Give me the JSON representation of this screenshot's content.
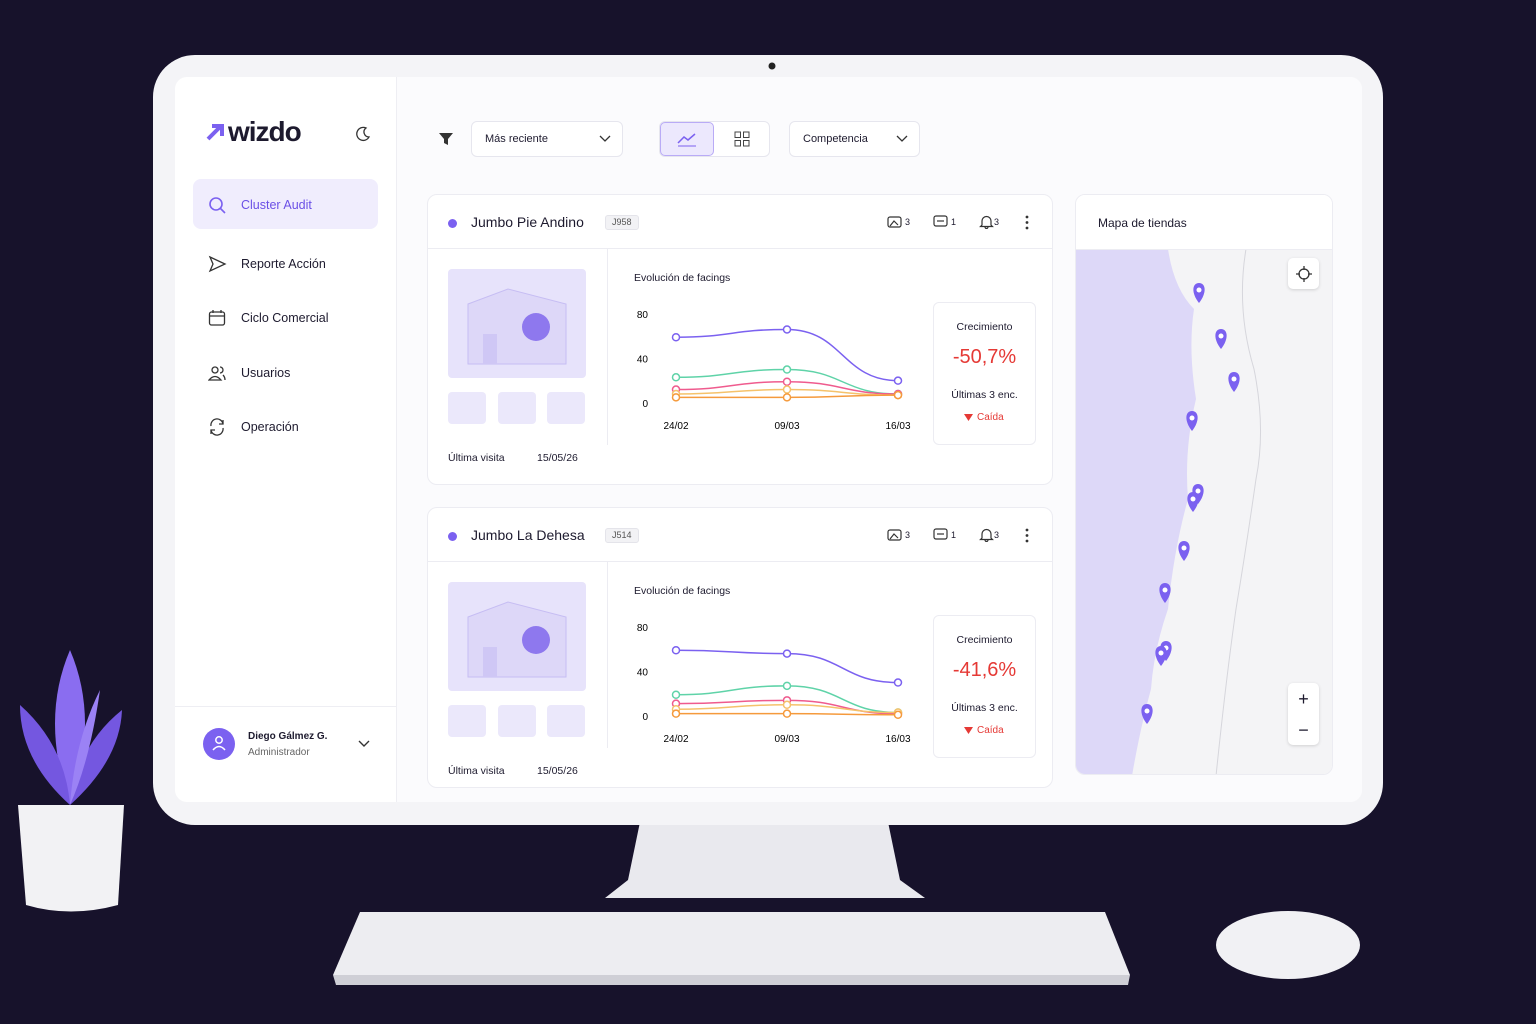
{
  "sidebar": {
    "logo": "wizdo",
    "nav": [
      "Cluster Audit",
      "Reporte Acción",
      "Ciclo Comercial",
      "Usuarios",
      "Operación"
    ],
    "user": {
      "name": "Diego Gálmez G.",
      "role": "Administrador"
    }
  },
  "toolbar": {
    "sort": "Más reciente",
    "filter": "Competencia"
  },
  "cards": [
    {
      "name": "Jumbo Pie Andino",
      "code": "J958",
      "photos": 3,
      "comments": 1,
      "alerts": 3,
      "growth_label": "Crecimiento",
      "growth": "-50,7%",
      "window": "Últimas 3 enc.",
      "trend": "Caída",
      "visit_label": "Última visita",
      "visit_date": "15/05/26"
    },
    {
      "name": "Jumbo La Dehesa",
      "code": "J514",
      "photos": 3,
      "comments": 1,
      "alerts": 3,
      "growth_label": "Crecimiento",
      "growth": "-41,6%",
      "window": "Últimas 3 enc.",
      "trend": "Caída",
      "visit_label": "Última visita",
      "visit_date": "15/05/26"
    }
  ],
  "chart_data": [
    {
      "type": "line",
      "title": "Evolución de facings",
      "categories": [
        "24/02",
        "09/03",
        "16/03"
      ],
      "ylim": [
        0,
        80
      ],
      "yticks": [
        0,
        40,
        80
      ],
      "series": [
        {
          "color": "#7b61f0",
          "values": [
            60,
            67,
            21
          ]
        },
        {
          "color": "#5fd3a8",
          "values": [
            24,
            31,
            9
          ]
        },
        {
          "color": "#ef5b8e",
          "values": [
            13,
            20,
            9
          ]
        },
        {
          "color": "#f5c26b",
          "values": [
            9,
            13,
            8
          ]
        },
        {
          "color": "#f59a3c",
          "values": [
            6,
            6,
            8
          ]
        }
      ]
    },
    {
      "type": "line",
      "title": "Evolución de facings",
      "categories": [
        "24/02",
        "09/03",
        "16/03"
      ],
      "ylim": [
        0,
        80
      ],
      "yticks": [
        0,
        40,
        80
      ],
      "series": [
        {
          "color": "#7b61f0",
          "values": [
            60,
            57,
            31
          ]
        },
        {
          "color": "#5fd3a8",
          "values": [
            20,
            28,
            4
          ]
        },
        {
          "color": "#ef5b8e",
          "values": [
            12,
            15,
            3
          ]
        },
        {
          "color": "#f5c26b",
          "values": [
            7,
            11,
            4
          ]
        },
        {
          "color": "#f59a3c",
          "values": [
            3,
            3,
            2
          ]
        }
      ]
    }
  ],
  "map": {
    "title": "Mapa de tiendas",
    "zoom_in": "+",
    "zoom_out": "−"
  }
}
